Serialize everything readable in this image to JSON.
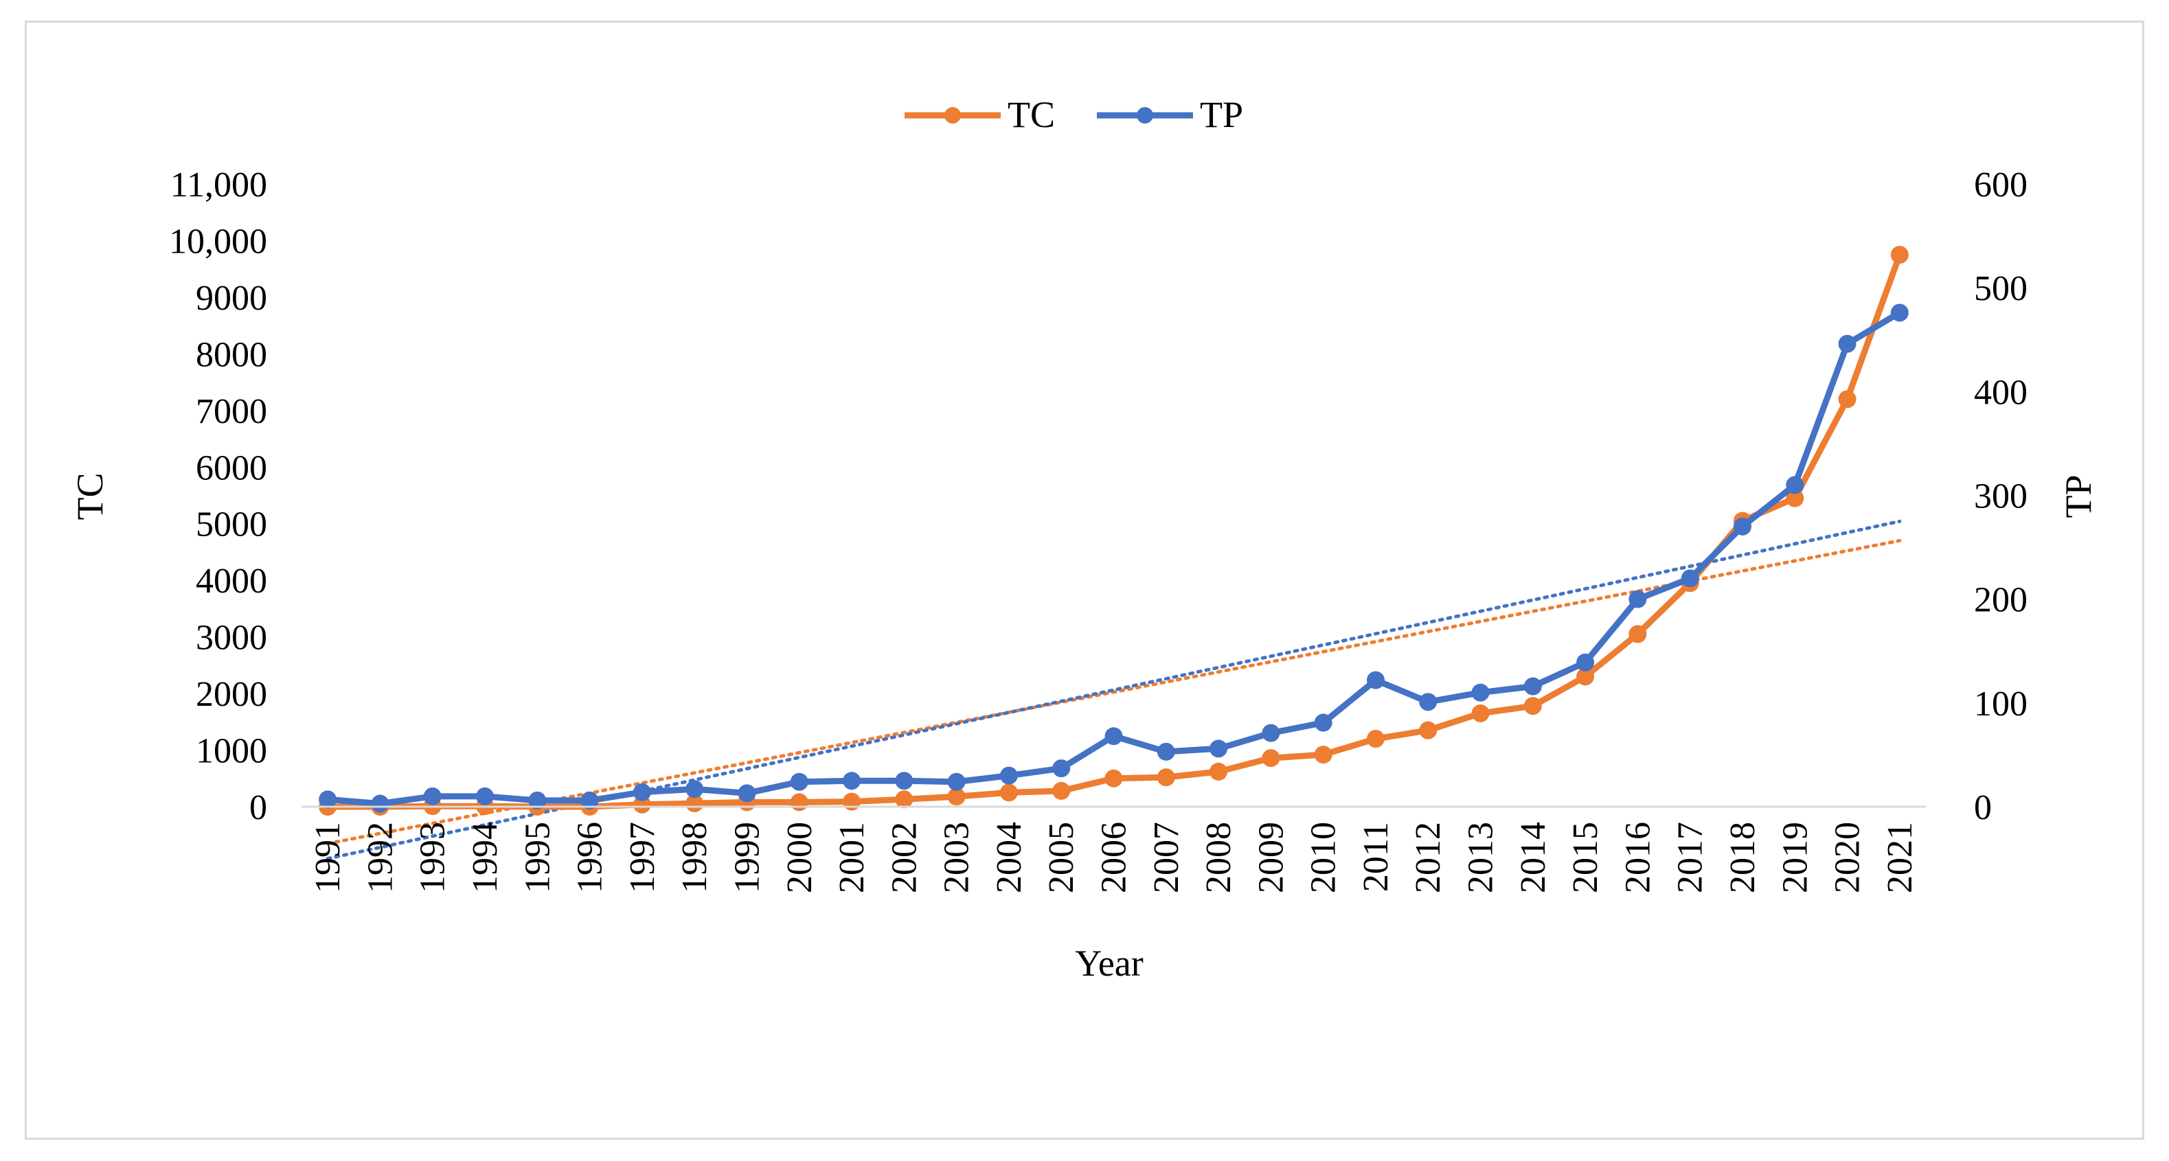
{
  "chart_data": {
    "type": "line",
    "title": "",
    "xlabel": "Year",
    "ylabel_left": "TC",
    "ylabel_right": "TP",
    "ylim_left": [
      0,
      11000
    ],
    "ylim_right": [
      0,
      600
    ],
    "yticks_left": [
      "0",
      "1000",
      "2000",
      "3000",
      "4000",
      "5000",
      "6000",
      "7000",
      "8000",
      "9000",
      "10,000",
      "11,000"
    ],
    "yticks_right": [
      "0",
      "100",
      "200",
      "300",
      "400",
      "500",
      "600"
    ],
    "categories": [
      "1991",
      "1992",
      "1993",
      "1994",
      "1995",
      "1996",
      "1997",
      "1998",
      "1999",
      "2000",
      "2001",
      "2002",
      "2003",
      "2004",
      "2005",
      "2006",
      "2007",
      "2008",
      "2009",
      "2010",
      "2011",
      "2012",
      "2013",
      "2014",
      "2015",
      "2016",
      "2017",
      "2018",
      "2019",
      "2020",
      "2021"
    ],
    "legend_position": "top-center",
    "series": [
      {
        "name": "TC",
        "axis": "left",
        "color": "#ED7D31",
        "values": [
          0,
          0,
          10,
          10,
          0,
          0,
          40,
          60,
          80,
          80,
          90,
          130,
          180,
          250,
          280,
          500,
          520,
          620,
          860,
          920,
          1200,
          1350,
          1650,
          1780,
          2300,
          3050,
          3950,
          5050,
          5450,
          7200,
          9750
        ],
        "trendline": {
          "type": "linear",
          "start": -650,
          "end": 4700,
          "color": "#ED7D31"
        }
      },
      {
        "name": "TP",
        "axis": "right",
        "color": "#4472C4",
        "values": [
          7,
          3,
          10,
          10,
          6,
          6,
          14,
          17,
          13,
          24,
          25,
          25,
          24,
          30,
          37,
          68,
          53,
          56,
          71,
          81,
          122,
          101,
          110,
          116,
          139,
          200,
          220,
          270,
          310,
          446,
          476
        ],
        "trendline": {
          "type": "linear",
          "start": -50,
          "end": 275,
          "color": "#4472C4"
        }
      }
    ]
  }
}
